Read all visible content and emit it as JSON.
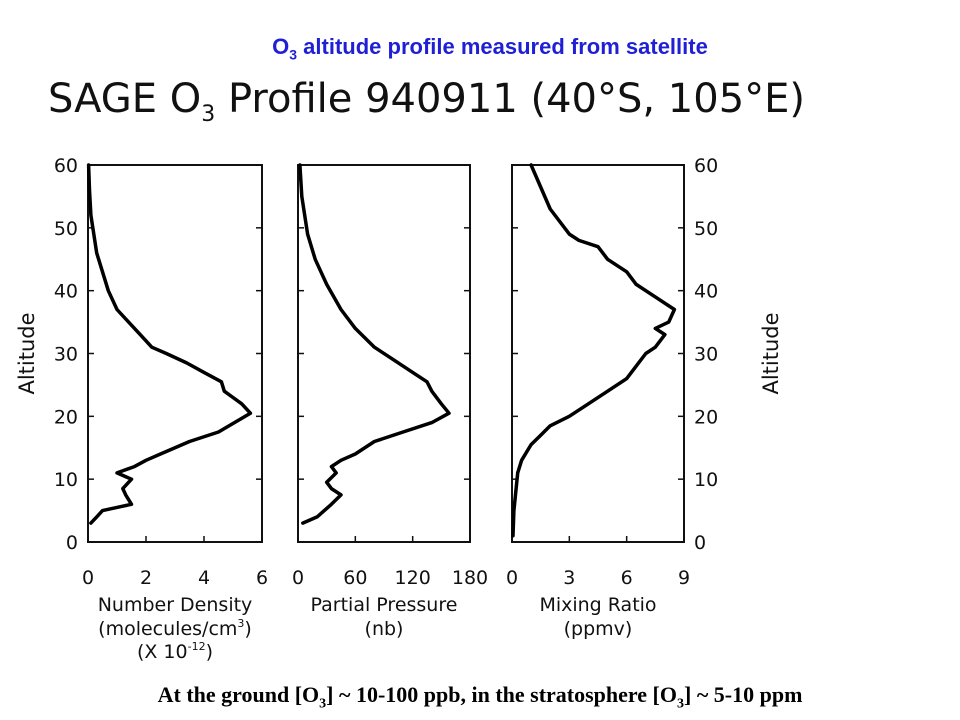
{
  "slide": {
    "title_prefix": "O",
    "title_sub": "3",
    "title_rest": " altitude profile measured from satellite"
  },
  "figure": {
    "title_prefix": "SAGE O",
    "title_sub": "3",
    "title_rest": " Profile 940911 (40°S, 105°E)"
  },
  "footer": {
    "part1": "At the ground [O",
    "sub1": "3",
    "part2": "] ~ 10-100 ppb, in the stratosphere [O",
    "sub2": "3",
    "part3": "] ~ 5-10 ppm"
  },
  "colors": {
    "slide_title": "#1f1fd6",
    "curve": "#000000"
  },
  "chart_data": [
    {
      "type": "line",
      "xlabel": [
        "Number Density",
        "(molecules/cm",
        "3",
        ")",
        "(X 10",
        "-12",
        ")"
      ],
      "ylabel": "Altitude",
      "ylabel_side": "left",
      "xlim": [
        0,
        6
      ],
      "ylim": [
        0,
        60
      ],
      "x_ticks": [
        0,
        2,
        4,
        6
      ],
      "y_ticks": [
        0,
        10,
        20,
        30,
        40,
        50,
        60
      ],
      "y_tick_side": "left",
      "grid": false,
      "series": [
        {
          "x": [
            0.1,
            0.3,
            0.5,
            1.0,
            1.5,
            1.3,
            1.2,
            1.5,
            1.0,
            1.6,
            2.0,
            2.5,
            3.5,
            4.5,
            5.6,
            5.3,
            5.0,
            4.7,
            4.6,
            4.0,
            3.4,
            2.7,
            2.2,
            1.8,
            1.4,
            1.0,
            0.7,
            0.5,
            0.3,
            0.2,
            0.1,
            0.05,
            0.02
          ],
          "y": [
            3,
            4,
            5,
            5.5,
            6,
            7.5,
            8.5,
            10,
            11,
            12,
            13,
            14,
            16,
            17.5,
            20.5,
            22,
            23,
            24,
            25.5,
            27,
            28.5,
            30,
            31,
            33,
            35,
            37,
            40,
            43,
            46,
            49,
            52,
            56,
            60
          ]
        }
      ]
    },
    {
      "type": "line",
      "xlabel": [
        "Partial Pressure",
        "(nb)"
      ],
      "ylabel": "",
      "xlim": [
        0,
        180
      ],
      "ylim": [
        0,
        60
      ],
      "x_ticks": [
        0,
        60,
        120,
        180
      ],
      "x_tick_labels": [
        "0",
        "60",
        "120",
        "180"
      ],
      "y_ticks": [
        0,
        10,
        20,
        30,
        40,
        50,
        60
      ],
      "grid": false,
      "series": [
        {
          "x": [
            5,
            20,
            35,
            45,
            35,
            30,
            40,
            35,
            45,
            60,
            80,
            110,
            140,
            158,
            150,
            140,
            135,
            120,
            100,
            80,
            60,
            45,
            30,
            18,
            10,
            4,
            2
          ],
          "y": [
            3,
            4,
            6,
            7.5,
            8.5,
            9.5,
            11,
            12,
            13,
            14,
            16,
            17.5,
            19,
            20.5,
            22,
            24,
            25.5,
            27,
            29,
            31,
            34,
            37,
            41,
            45,
            49,
            55,
            60
          ]
        }
      ]
    },
    {
      "type": "line",
      "xlabel": [
        "Mixing Ratio",
        "(ppmv)"
      ],
      "ylabel": "Altitude",
      "ylabel_side": "right",
      "xlim": [
        0,
        9
      ],
      "ylim": [
        0,
        60
      ],
      "x_ticks": [
        0,
        3,
        6,
        9
      ],
      "y_ticks": [
        0,
        10,
        20,
        30,
        40,
        50,
        60
      ],
      "y_tick_side": "right",
      "grid": false,
      "series": [
        {
          "x": [
            0.05,
            0.1,
            0.2,
            0.3,
            0.5,
            1.0,
            1.5,
            2.0,
            3.0,
            4.0,
            5.0,
            6.0,
            6.5,
            7.0,
            7.5,
            8.0,
            7.5,
            8.2,
            8.5,
            7.5,
            6.5,
            6.0,
            5.0,
            4.5,
            3.5,
            3.0,
            2.0,
            1.0
          ],
          "y": [
            1,
            5,
            8,
            11,
            13,
            15.5,
            17,
            18.5,
            20,
            22,
            24,
            26,
            28,
            30,
            31,
            33,
            34,
            35,
            37,
            39,
            41,
            43,
            45,
            47,
            48,
            49,
            53,
            60
          ]
        }
      ]
    }
  ]
}
